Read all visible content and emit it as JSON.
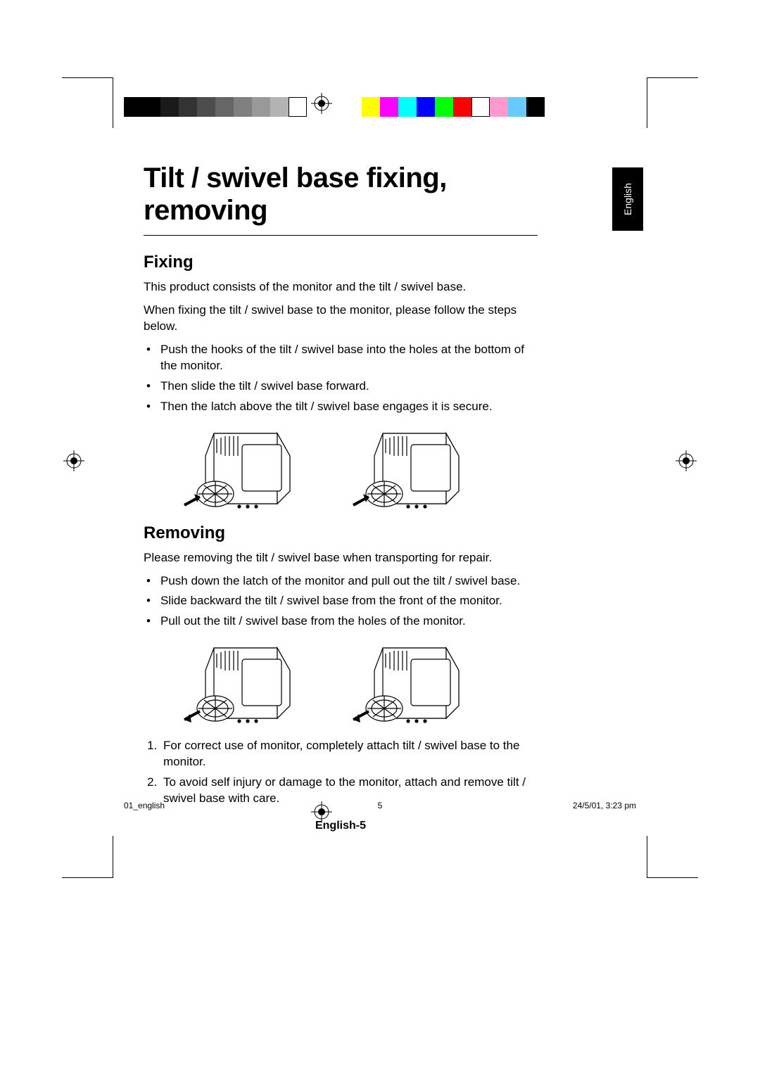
{
  "colors": {
    "gray_swatches": [
      "#000000",
      "#000000",
      "#1a1a1a",
      "#333333",
      "#4d4d4d",
      "#666666",
      "#808080",
      "#999999",
      "#b3b3b3",
      "#ffffff"
    ],
    "gray_last_border": "#000000",
    "color_swatches": [
      "#ffff00",
      "#ff00ff",
      "#00ffff",
      "#0000ff",
      "#00ff00",
      "#ff0000",
      "#ffffff",
      "#ff99cc",
      "#66ccff",
      "#000000"
    ],
    "color_last_border": "#000000",
    "tab_bg": "#000000",
    "tab_fg": "#ffffff",
    "text": "#000000",
    "page_bg": "#ffffff"
  },
  "lang_tab": "English",
  "title": "Tilt / swivel base fixing, removing",
  "section_fixing": {
    "heading": "Fixing",
    "p1": "This product consists of the monitor and the tilt / swivel base.",
    "p2": "When fixing the tilt / swivel base to the monitor, please follow the steps below.",
    "bullets": [
      "Push the hooks of the tilt / swivel base into the holes at the bottom of the monitor.",
      "Then slide the tilt / swivel base forward.",
      "Then the latch above the tilt / swivel base engages it is secure."
    ]
  },
  "section_removing": {
    "heading": "Removing",
    "p1": "Please removing the tilt / swivel base when transporting for repair.",
    "bullets": [
      "Push down the latch of the monitor and pull out the tilt / swivel base.",
      "Slide backward the tilt / swivel base from the front of the monitor.",
      "Pull out the tilt / swivel base from the holes of the monitor."
    ],
    "notes": [
      "For correct use of monitor, completely attach tilt / swivel base to the monitor.",
      "To avoid self injury or damage to the monitor, attach and remove tilt / swivel base with care."
    ]
  },
  "page_footer": "English-5",
  "meta": {
    "file": "01_english",
    "page": "5",
    "stamp": "24/5/01, 3:23 pm"
  },
  "figures": {
    "arrows": {
      "fixing": [
        "in-right",
        "in-right"
      ],
      "removing": [
        "out-left",
        "out-left"
      ]
    }
  }
}
